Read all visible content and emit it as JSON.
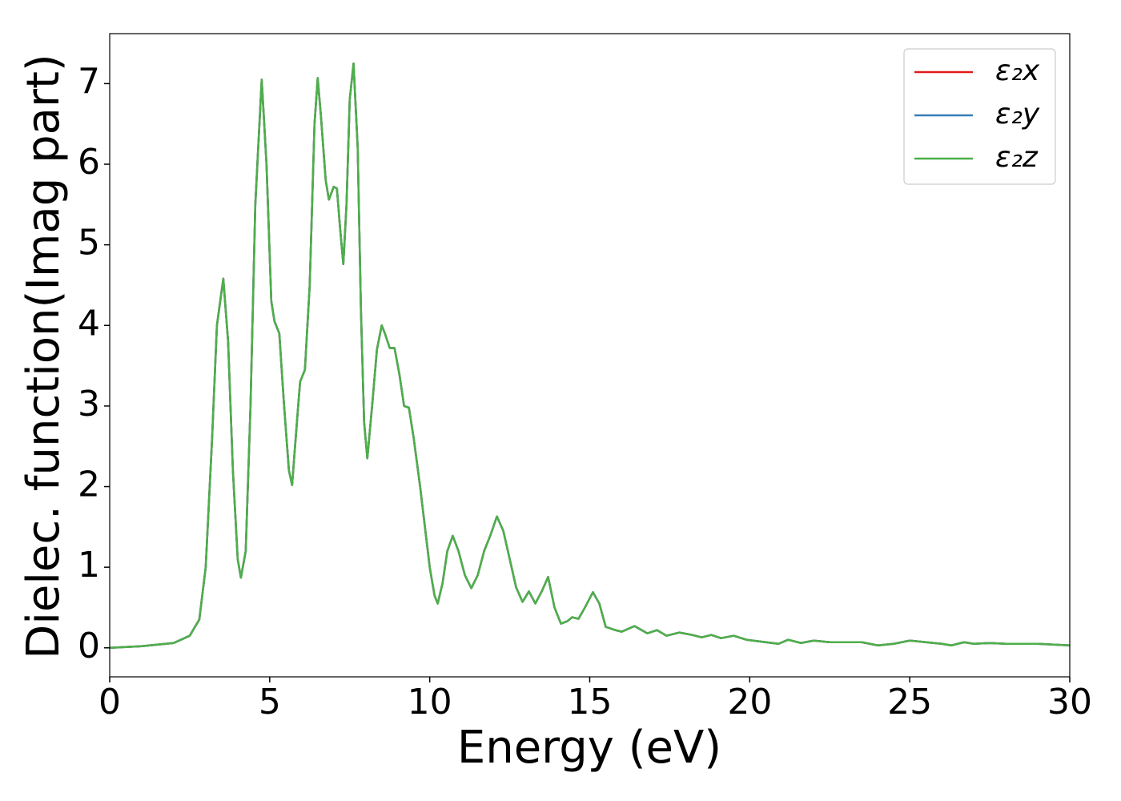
{
  "chart_data": {
    "type": "line",
    "xlabel": "Energy (eV)",
    "ylabel": "Dielec. function(Imag part)",
    "x": [
      0,
      1,
      2,
      2.5,
      2.8,
      3.0,
      3.2,
      3.35,
      3.55,
      3.7,
      3.85,
      4.0,
      4.1,
      4.25,
      4.4,
      4.55,
      4.75,
      4.9,
      5.05,
      5.15,
      5.3,
      5.45,
      5.6,
      5.7,
      5.85,
      5.95,
      6.1,
      6.25,
      6.4,
      6.5,
      6.6,
      6.75,
      6.85,
      7.0,
      7.1,
      7.2,
      7.3,
      7.4,
      7.5,
      7.62,
      7.75,
      7.85,
      7.95,
      8.05,
      8.2,
      8.35,
      8.5,
      8.6,
      8.75,
      8.9,
      9.05,
      9.2,
      9.35,
      9.5,
      9.7,
      9.85,
      10.0,
      10.15,
      10.25,
      10.4,
      10.55,
      10.72,
      10.9,
      11.1,
      11.3,
      11.5,
      11.7,
      11.9,
      12.1,
      12.3,
      12.5,
      12.7,
      12.9,
      13.1,
      13.3,
      13.5,
      13.7,
      13.9,
      14.1,
      14.3,
      14.45,
      14.65,
      14.85,
      15.1,
      15.3,
      15.5,
      15.8,
      16.0,
      16.4,
      16.8,
      17.1,
      17.4,
      17.8,
      18.2,
      18.5,
      18.8,
      19.1,
      19.5,
      19.9,
      20.5,
      20.9,
      21.2,
      21.6,
      22.0,
      22.5,
      23.0,
      23.5,
      24.0,
      24.5,
      25.0,
      25.5,
      26.0,
      26.3,
      26.7,
      27.0,
      27.5,
      28,
      29,
      30
    ],
    "series": [
      {
        "name": "ε₂x",
        "color": "#e41a1c",
        "values": [
          0,
          0.02,
          0.06,
          0.15,
          0.35,
          1.0,
          2.6,
          4.0,
          4.58,
          3.8,
          2.2,
          1.1,
          0.87,
          1.2,
          3.0,
          5.5,
          7.05,
          6.0,
          4.3,
          4.05,
          3.9,
          3.0,
          2.2,
          2.02,
          2.8,
          3.3,
          3.45,
          4.5,
          6.5,
          7.07,
          6.6,
          5.8,
          5.56,
          5.72,
          5.7,
          5.2,
          4.76,
          5.5,
          6.8,
          7.25,
          6.2,
          4.2,
          2.8,
          2.35,
          3.0,
          3.7,
          4.0,
          3.9,
          3.72,
          3.72,
          3.4,
          3.0,
          2.98,
          2.6,
          2.0,
          1.5,
          1.0,
          0.65,
          0.55,
          0.8,
          1.2,
          1.39,
          1.2,
          0.9,
          0.74,
          0.9,
          1.2,
          1.4,
          1.63,
          1.45,
          1.1,
          0.75,
          0.57,
          0.7,
          0.55,
          0.7,
          0.88,
          0.5,
          0.3,
          0.33,
          0.38,
          0.36,
          0.5,
          0.69,
          0.55,
          0.26,
          0.22,
          0.2,
          0.27,
          0.18,
          0.22,
          0.15,
          0.19,
          0.16,
          0.13,
          0.16,
          0.12,
          0.15,
          0.1,
          0.07,
          0.05,
          0.1,
          0.06,
          0.09,
          0.07,
          0.07,
          0.07,
          0.03,
          0.05,
          0.09,
          0.07,
          0.05,
          0.03,
          0.07,
          0.05,
          0.06,
          0.05,
          0.05,
          0.03
        ]
      },
      {
        "name": "ε₂y",
        "color": "#377eb8",
        "values": [
          0,
          0.02,
          0.06,
          0.15,
          0.35,
          1.0,
          2.6,
          4.0,
          4.58,
          3.8,
          2.2,
          1.1,
          0.87,
          1.2,
          3.0,
          5.5,
          7.05,
          6.0,
          4.3,
          4.05,
          3.9,
          3.0,
          2.2,
          2.02,
          2.8,
          3.3,
          3.45,
          4.5,
          6.5,
          7.07,
          6.6,
          5.8,
          5.56,
          5.72,
          5.7,
          5.2,
          4.76,
          5.5,
          6.8,
          7.25,
          6.2,
          4.2,
          2.8,
          2.35,
          3.0,
          3.7,
          4.0,
          3.9,
          3.72,
          3.72,
          3.4,
          3.0,
          2.98,
          2.6,
          2.0,
          1.5,
          1.0,
          0.65,
          0.55,
          0.8,
          1.2,
          1.39,
          1.2,
          0.9,
          0.74,
          0.9,
          1.2,
          1.4,
          1.63,
          1.45,
          1.1,
          0.75,
          0.57,
          0.7,
          0.55,
          0.7,
          0.88,
          0.5,
          0.3,
          0.33,
          0.38,
          0.36,
          0.5,
          0.69,
          0.55,
          0.26,
          0.22,
          0.2,
          0.27,
          0.18,
          0.22,
          0.15,
          0.19,
          0.16,
          0.13,
          0.16,
          0.12,
          0.15,
          0.1,
          0.07,
          0.05,
          0.1,
          0.06,
          0.09,
          0.07,
          0.07,
          0.07,
          0.03,
          0.05,
          0.09,
          0.07,
          0.05,
          0.03,
          0.07,
          0.05,
          0.06,
          0.05,
          0.05,
          0.03
        ]
      },
      {
        "name": "ε₂z",
        "color": "#4daf4a",
        "values": [
          0,
          0.02,
          0.06,
          0.15,
          0.35,
          1.0,
          2.6,
          4.0,
          4.58,
          3.8,
          2.2,
          1.1,
          0.87,
          1.2,
          3.0,
          5.5,
          7.05,
          6.0,
          4.3,
          4.05,
          3.9,
          3.0,
          2.2,
          2.02,
          2.8,
          3.3,
          3.45,
          4.5,
          6.5,
          7.07,
          6.6,
          5.8,
          5.56,
          5.72,
          5.7,
          5.2,
          4.76,
          5.5,
          6.8,
          7.25,
          6.2,
          4.2,
          2.8,
          2.35,
          3.0,
          3.7,
          4.0,
          3.9,
          3.72,
          3.72,
          3.4,
          3.0,
          2.98,
          2.6,
          2.0,
          1.5,
          1.0,
          0.65,
          0.55,
          0.8,
          1.2,
          1.39,
          1.2,
          0.9,
          0.74,
          0.9,
          1.2,
          1.4,
          1.63,
          1.45,
          1.1,
          0.75,
          0.57,
          0.7,
          0.55,
          0.7,
          0.88,
          0.5,
          0.3,
          0.33,
          0.38,
          0.36,
          0.5,
          0.69,
          0.55,
          0.26,
          0.22,
          0.2,
          0.27,
          0.18,
          0.22,
          0.15,
          0.19,
          0.16,
          0.13,
          0.16,
          0.12,
          0.15,
          0.1,
          0.07,
          0.05,
          0.1,
          0.06,
          0.09,
          0.07,
          0.07,
          0.07,
          0.03,
          0.05,
          0.09,
          0.07,
          0.05,
          0.03,
          0.07,
          0.05,
          0.06,
          0.05,
          0.05,
          0.03
        ]
      }
    ],
    "xlim": [
      0,
      30
    ],
    "xticks": [
      0,
      5,
      10,
      15,
      20,
      25,
      30
    ],
    "ylim": [
      -0.36,
      7.62
    ],
    "yticks": [
      0,
      1,
      2,
      3,
      4,
      5,
      6,
      7
    ],
    "grid": false,
    "legend": "upper right"
  }
}
